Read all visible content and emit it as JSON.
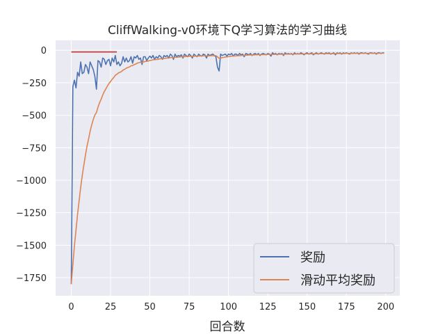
{
  "chart_data": {
    "type": "line",
    "title": "CliffWalking-v0环境下Q学习算法的学习曲线",
    "xlabel": "回合数",
    "ylabel": "",
    "xlim": [
      -9.95,
      208.95
    ],
    "ylim": [
      -1889,
      76
    ],
    "xticks": [
      0,
      25,
      50,
      75,
      100,
      125,
      150,
      175,
      200
    ],
    "xtick_labels": [
      "0",
      "25",
      "50",
      "75",
      "100",
      "125",
      "150",
      "175",
      "200"
    ],
    "yticks": [
      0,
      -250,
      -500,
      -750,
      -1000,
      -1250,
      -1500,
      -1750
    ],
    "ytick_labels": [
      "0",
      "−250",
      "−500",
      "−750",
      "−1000",
      "−1250",
      "−1500",
      "−1750"
    ],
    "grid": true,
    "legend_position": "lower-right",
    "series": [
      {
        "name": "奖励",
        "color": "#4c72b0",
        "values": [
          -1800,
          -280,
          -230,
          -290,
          -170,
          -200,
          -90,
          -180,
          -170,
          -110,
          -130,
          -180,
          -90,
          -120,
          -150,
          -200,
          -300,
          -80,
          -90,
          -130,
          -60,
          -70,
          -110,
          -80,
          -70,
          -120,
          -60,
          -90,
          -40,
          -110,
          -90,
          -120,
          -100,
          -50,
          -90,
          -60,
          -90,
          -80,
          -50,
          -100,
          -50,
          -60,
          -40,
          -70,
          -60,
          -110,
          -50,
          -50,
          -80,
          -60,
          -45,
          -60,
          -40,
          -70,
          -50,
          -60,
          -40,
          -50,
          -70,
          -40,
          -50,
          -40,
          -60,
          -30,
          -40,
          -70,
          -30,
          -50,
          -40,
          -45,
          -35,
          -60,
          -30,
          -40,
          -50,
          -30,
          -40,
          -60,
          -30,
          -40,
          -50,
          -30,
          -40,
          -45,
          -30,
          -35,
          -60,
          -30,
          -40,
          -35,
          -30,
          -40,
          -50,
          -130,
          -160,
          -30,
          -40,
          -35,
          -30,
          -45,
          -30,
          -35,
          -25,
          -45,
          -30,
          -30,
          -40,
          -25,
          -35,
          -30,
          -50,
          -25,
          -30,
          -35,
          -25,
          -40,
          -30,
          -25,
          -35,
          -25,
          -40,
          -30,
          -25,
          -30,
          -35,
          -25,
          -30,
          -45,
          -20,
          -30,
          -25,
          -35,
          -25,
          -30,
          -25,
          -40,
          -20,
          -30,
          -25,
          -30,
          -25,
          -35,
          -20,
          -30,
          -25,
          -30,
          -20,
          -25,
          -35,
          -25,
          -20,
          -30,
          -25,
          -20,
          -35,
          -25,
          -20,
          -30,
          -25,
          -20,
          -25,
          -30,
          -20,
          -25,
          -20,
          -30,
          -25,
          -20,
          -35,
          -20,
          -25,
          -20,
          -30,
          -20,
          -25,
          -20,
          -25,
          -30,
          -20,
          -25,
          -20,
          -25,
          -20,
          -30,
          -20,
          -20,
          -25,
          -20,
          -25,
          -30,
          -20,
          -20,
          -25,
          -20,
          -30,
          -20,
          -20,
          -25,
          -20,
          -20
        ]
      },
      {
        "name": "滑动平均奖励",
        "color": "#dd8452",
        "values": [
          -1800,
          -1648,
          -1506,
          -1385,
          -1264,
          -1158,
          -1051,
          -964,
          -884,
          -807,
          -739,
          -683,
          -624,
          -574,
          -532,
          -499,
          -479,
          -439,
          -404,
          -377,
          -345,
          -318,
          -297,
          -275,
          -255,
          -241,
          -223,
          -210,
          -193,
          -185,
          -175,
          -170,
          -163,
          -152,
          -146,
          -138,
          -133,
          -128,
          -120,
          -118,
          -111,
          -106,
          -99,
          -96,
          -92,
          -94,
          -90,
          -86,
          -85,
          -83,
          -79,
          -77,
          -73,
          -73,
          -71,
          -70,
          -67,
          -65,
          -66,
          -63,
          -62,
          -60,
          -60,
          -57,
          -55,
          -57,
          -54,
          -54,
          -53,
          -52,
          -50,
          -51,
          -49,
          -48,
          -48,
          -46,
          -46,
          -47,
          -46,
          -45,
          -46,
          -44,
          -44,
          -44,
          -43,
          -42,
          -44,
          -43,
          -43,
          -42,
          -41,
          -41,
          -42,
          -51,
          -62,
          -59,
          -57,
          -55,
          -52,
          -51,
          -49,
          -48,
          -45,
          -45,
          -44,
          -43,
          -43,
          -41,
          -40,
          -39,
          -40,
          -38,
          -38,
          -37,
          -36,
          -36,
          -36,
          -35,
          -35,
          -34,
          -35,
          -34,
          -33,
          -33,
          -33,
          -32,
          -32,
          -33,
          -32,
          -32,
          -31,
          -31,
          -31,
          -31,
          -30,
          -31,
          -30,
          -30,
          -30,
          -30,
          -29,
          -30,
          -29,
          -29,
          -29,
          -29,
          -28,
          -28,
          -29,
          -28,
          -27,
          -28,
          -28,
          -27,
          -28,
          -28,
          -27,
          -27,
          -27,
          -26,
          -26,
          -26,
          -26,
          -26,
          -25,
          -26,
          -26,
          -25,
          -26,
          -25,
          -25,
          -25,
          -25,
          -25,
          -25,
          -24,
          -24,
          -25,
          -24,
          -24,
          -24,
          -24,
          -24,
          -24,
          -24,
          -23,
          -24,
          -23,
          -24,
          -24,
          -23,
          -23,
          -24,
          -23,
          -24,
          -24,
          -23,
          -23,
          -23,
          -23
        ]
      }
    ],
    "reference_line": {
      "color": "#c44e52",
      "x": [
        0,
        29
      ],
      "y": -13
    }
  }
}
